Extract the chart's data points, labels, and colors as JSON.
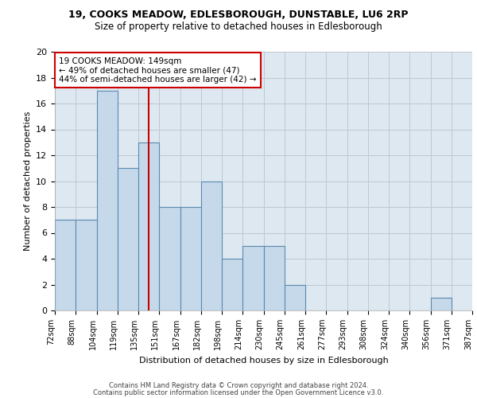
{
  "title1": "19, COOKS MEADOW, EDLESBOROUGH, DUNSTABLE, LU6 2RP",
  "title2": "Size of property relative to detached houses in Edlesborough",
  "xlabel": "Distribution of detached houses by size in Edlesborough",
  "ylabel": "Number of detached properties",
  "bin_labels": [
    "72sqm",
    "88sqm",
    "104sqm",
    "119sqm",
    "135sqm",
    "151sqm",
    "167sqm",
    "182sqm",
    "198sqm",
    "214sqm",
    "230sqm",
    "245sqm",
    "261sqm",
    "277sqm",
    "293sqm",
    "308sqm",
    "324sqm",
    "340sqm",
    "356sqm",
    "371sqm",
    "387sqm"
  ],
  "bar_values": [
    7,
    7,
    17,
    11,
    13,
    8,
    8,
    10,
    4,
    5,
    5,
    2,
    0,
    0,
    0,
    0,
    0,
    0,
    1,
    0
  ],
  "bar_color": "#c6d9ea",
  "bar_edge_color": "#5a8ab0",
  "bar_edge_width": 0.8,
  "grid_color": "#c0c8d0",
  "background_color": "#dde8f0",
  "red_line_x": 4.5,
  "red_line_color": "#cc0000",
  "annotation_text": "19 COOKS MEADOW: 149sqm\n← 49% of detached houses are smaller (47)\n44% of semi-detached houses are larger (42) →",
  "annotation_box_color": "white",
  "annotation_box_edge": "#cc0000",
  "ylim": [
    0,
    20
  ],
  "yticks": [
    0,
    2,
    4,
    6,
    8,
    10,
    12,
    14,
    16,
    18,
    20
  ],
  "footnote1": "Contains HM Land Registry data © Crown copyright and database right 2024.",
  "footnote2": "Contains public sector information licensed under the Open Government Licence v3.0."
}
